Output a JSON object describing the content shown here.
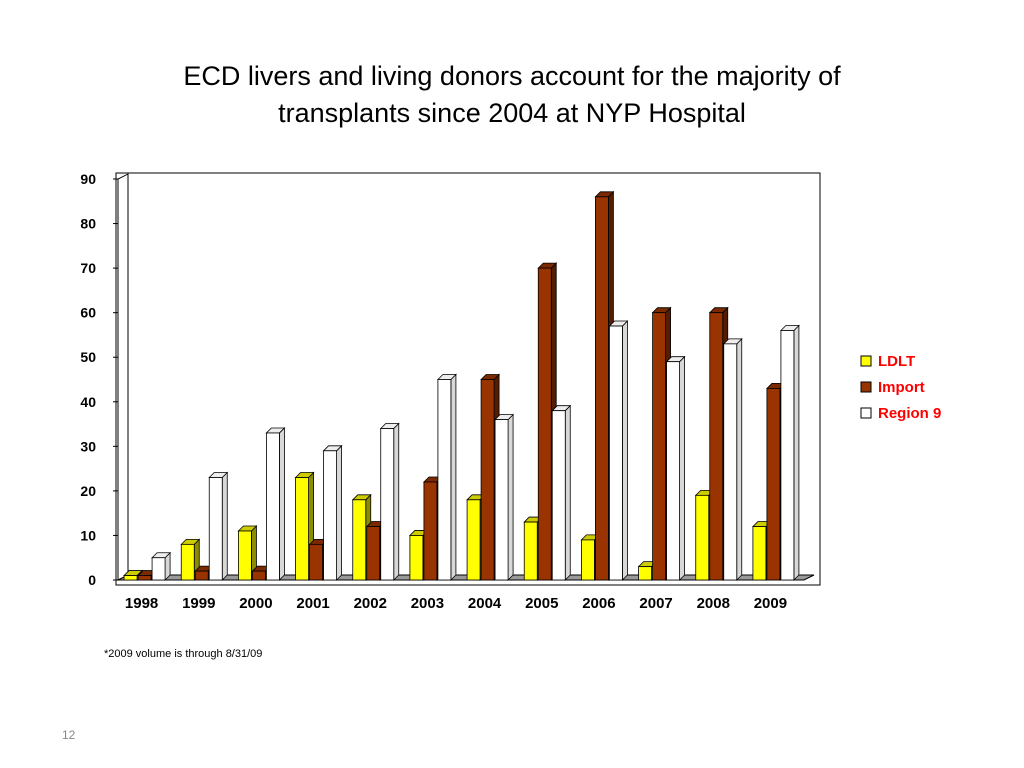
{
  "slide": {
    "title_line1": "ECD livers and living donors account for the majority of",
    "title_line2": "transplants since 2004 at NYP Hospital",
    "footnote": "*2009 volume is through 8/31/09",
    "slide_number": "12"
  },
  "chart_data": {
    "type": "bar",
    "title": "",
    "xlabel": "",
    "ylabel": "",
    "categories": [
      "1998",
      "1999",
      "2000",
      "2001",
      "2002",
      "2003",
      "2004",
      "2005",
      "2006",
      "2007",
      "2008",
      "2009"
    ],
    "series": [
      {
        "name": "LDLT",
        "color": "#ffff00",
        "values": [
          1,
          8,
          11,
          23,
          18,
          10,
          18,
          13,
          9,
          3,
          19,
          12
        ]
      },
      {
        "name": "Import",
        "color": "#993300",
        "values": [
          1,
          2,
          2,
          8,
          12,
          22,
          45,
          70,
          86,
          60,
          60,
          43
        ]
      },
      {
        "name": "Region 9",
        "color": "#ffffff",
        "values": [
          5,
          23,
          33,
          29,
          34,
          45,
          36,
          38,
          57,
          49,
          53,
          56
        ]
      }
    ],
    "ylim": [
      0,
      90
    ],
    "yticks": [
      0,
      10,
      20,
      30,
      40,
      50,
      60,
      70,
      80,
      90
    ],
    "legend_position": "right",
    "legend_text_color": "#ff0000",
    "grid": false
  }
}
